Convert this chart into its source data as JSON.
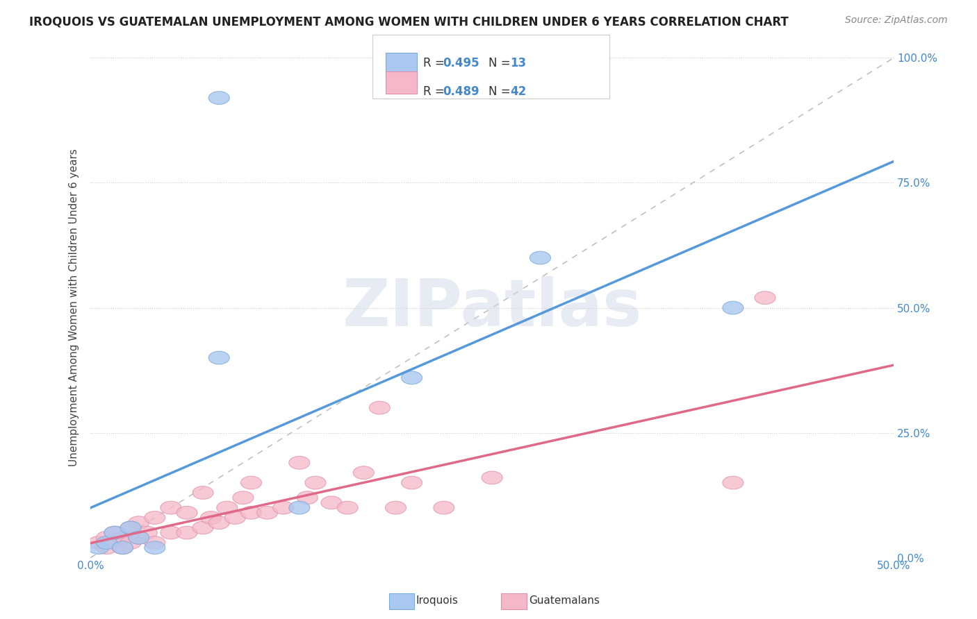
{
  "title": "IROQUOIS VS GUATEMALAN UNEMPLOYMENT AMONG WOMEN WITH CHILDREN UNDER 6 YEARS CORRELATION CHART",
  "source": "Source: ZipAtlas.com",
  "ylabel": "Unemployment Among Women with Children Under 6 years",
  "xlim": [
    0.0,
    0.5
  ],
  "ylim": [
    0.0,
    1.0
  ],
  "yticks": [
    0.0,
    0.25,
    0.5,
    0.75,
    1.0
  ],
  "ytick_labels_right": [
    "0.0%",
    "25.0%",
    "50.0%",
    "75.0%",
    "100.0%"
  ],
  "xtick_left_label": "0.0%",
  "xtick_right_label": "50.0%",
  "iroquois_color": "#aac8f0",
  "iroquois_edge": "#7aaad8",
  "iroquois_line_color": "#5599dd",
  "guatemalan_color": "#f5b8c8",
  "guatemalan_edge": "#e090aa",
  "guatemalan_line_color": "#e06888",
  "R_iroquois": 0.495,
  "N_iroquois": 13,
  "R_guatemalan": 0.489,
  "N_guatemalan": 42,
  "watermark": "ZIPatlas",
  "iroquois_x": [
    0.005,
    0.01,
    0.015,
    0.02,
    0.025,
    0.03,
    0.04,
    0.08,
    0.13,
    0.2,
    0.28,
    0.4,
    0.08
  ],
  "iroquois_y": [
    0.02,
    0.03,
    0.05,
    0.02,
    0.06,
    0.04,
    0.02,
    0.92,
    0.1,
    0.36,
    0.6,
    0.5,
    0.4
  ],
  "guatemalan_x": [
    0.005,
    0.01,
    0.01,
    0.015,
    0.015,
    0.02,
    0.02,
    0.025,
    0.025,
    0.03,
    0.03,
    0.035,
    0.04,
    0.04,
    0.05,
    0.05,
    0.06,
    0.06,
    0.07,
    0.07,
    0.075,
    0.08,
    0.085,
    0.09,
    0.095,
    0.1,
    0.1,
    0.11,
    0.12,
    0.13,
    0.135,
    0.14,
    0.15,
    0.16,
    0.17,
    0.18,
    0.19,
    0.2,
    0.22,
    0.25,
    0.4,
    0.42
  ],
  "guatemalan_y": [
    0.03,
    0.02,
    0.04,
    0.03,
    0.05,
    0.02,
    0.04,
    0.03,
    0.06,
    0.04,
    0.07,
    0.05,
    0.03,
    0.08,
    0.05,
    0.1,
    0.05,
    0.09,
    0.06,
    0.13,
    0.08,
    0.07,
    0.1,
    0.08,
    0.12,
    0.09,
    0.15,
    0.09,
    0.1,
    0.19,
    0.12,
    0.15,
    0.11,
    0.1,
    0.17,
    0.3,
    0.1,
    0.15,
    0.1,
    0.16,
    0.15,
    0.52
  ],
  "background_color": "#ffffff",
  "grid_color": "#cccccc",
  "ref_line_color": "#c0c0c0",
  "legend_text_color": "#4488cc",
  "right_tick_color": "#4488cc"
}
